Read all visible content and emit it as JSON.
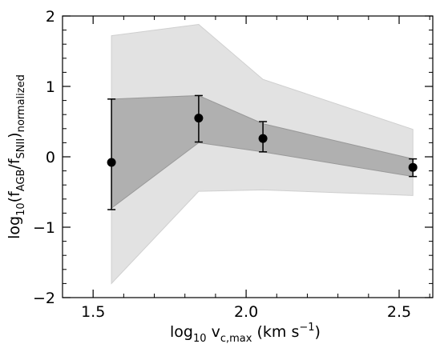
{
  "chart_data": {
    "type": "scatter",
    "xlabel": {
      "base": "log",
      "sub": "10",
      "var": " v",
      "var_sub": "c,max",
      "units_pre": " (km s",
      "units_sup": "−1",
      "units_post": ")"
    },
    "ylabel": {
      "base": "log",
      "sub": "10",
      "open": "(f",
      "sub1": "AGB",
      "mid": "/f",
      "sub2": "SNII",
      "close": ")",
      "tail": "normalized"
    },
    "xlim": [
      1.4,
      2.61
    ],
    "ylim": [
      -2,
      2
    ],
    "xticks": [
      1.5,
      2.0,
      2.5
    ],
    "xtick_labels": [
      "1.5",
      "2.0",
      "2.5"
    ],
    "yticks": [
      -2,
      -1,
      0,
      1,
      2
    ],
    "ytick_labels": [
      "−2",
      "−1",
      "0",
      "1",
      "2"
    ],
    "grid": false,
    "points": {
      "x": [
        1.56,
        1.845,
        2.055,
        2.545
      ],
      "y": [
        -0.08,
        0.55,
        0.26,
        -0.15
      ],
      "yerr_low": [
        -0.75,
        0.21,
        0.07,
        -0.28
      ],
      "yerr_high": [
        0.82,
        0.87,
        0.5,
        -0.03
      ]
    },
    "inner_band": {
      "x": [
        1.56,
        1.845,
        2.055,
        2.545
      ],
      "low": [
        -0.73,
        0.2,
        0.07,
        -0.28
      ],
      "high": [
        0.82,
        0.87,
        0.47,
        -0.03
      ]
    },
    "outer_band": {
      "x": [
        1.56,
        1.845,
        2.055,
        2.545
      ],
      "low": [
        -1.8,
        -0.49,
        -0.47,
        -0.55
      ],
      "high": [
        1.72,
        1.88,
        1.1,
        0.39
      ]
    },
    "colors": {
      "outer_band": "#e2e2e2",
      "inner_band": "#b0b0b0",
      "point": "#000000"
    }
  }
}
